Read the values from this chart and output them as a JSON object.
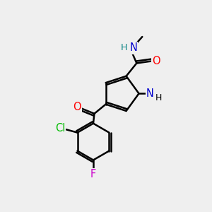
{
  "bg_color": "#efefef",
  "bond_color": "#000000",
  "bond_width": 1.8,
  "atom_colors": {
    "C": "#000000",
    "N_blue": "#0000cd",
    "N_teal": "#008080",
    "O": "#ff0000",
    "Cl": "#00bb00",
    "F": "#cc00cc",
    "H": "#000000"
  },
  "font_size": 10.5
}
